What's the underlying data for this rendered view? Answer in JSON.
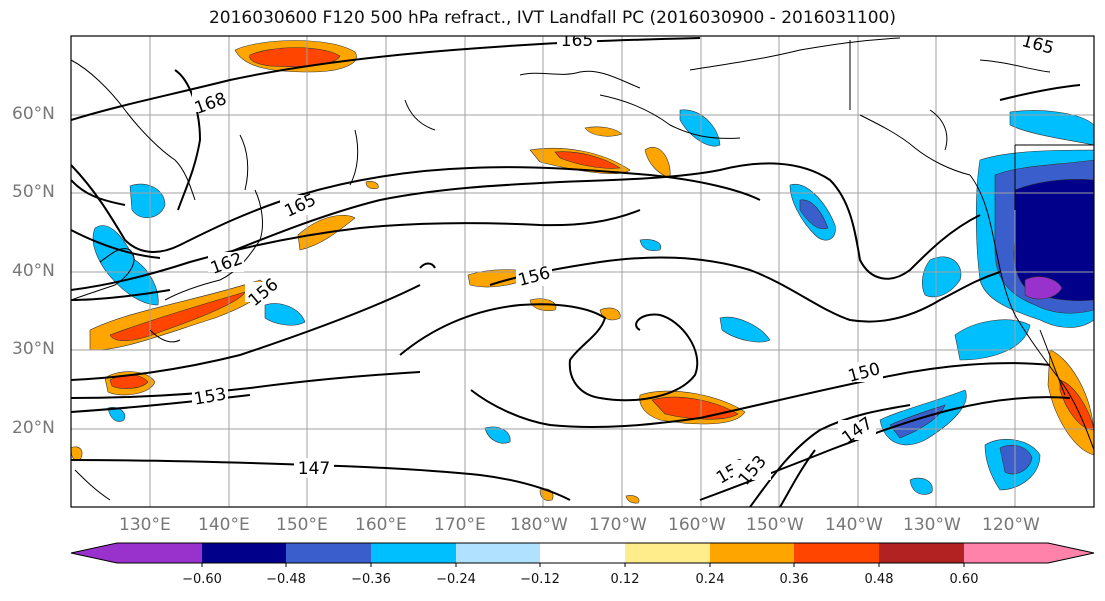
{
  "title": "2016030600 F120 500 hPa refract., IVT Landfall PC (2016030900 - 2016031100)",
  "map": {
    "lat_labels": [
      "60°N",
      "50°N",
      "40°N",
      "30°N",
      "20°N"
    ],
    "lon_labels": [
      "130°E",
      "140°E",
      "150°E",
      "160°E",
      "170°E",
      "180°W",
      "170°W",
      "160°W",
      "150°W",
      "140°W",
      "130°W",
      "120°W"
    ],
    "contour_labels": [
      "168",
      "165",
      "165",
      "165",
      "162",
      "156",
      "156",
      "153",
      "150",
      "150",
      "147",
      "153",
      "147"
    ]
  },
  "colorbar": {
    "tick_labels": [
      "−0.60",
      "−0.48",
      "−0.36",
      "−0.24",
      "−0.12",
      "0.12",
      "0.24",
      "0.36",
      "0.48",
      "0.60"
    ],
    "colors": [
      "#9932cc",
      "#00008b",
      "#3a5fcd",
      "#00bfff",
      "#b0e2ff",
      "#ffffff",
      "#ffec8b",
      "#ffa500",
      "#ff4500",
      "#b22222",
      "#ff82ab"
    ]
  }
}
